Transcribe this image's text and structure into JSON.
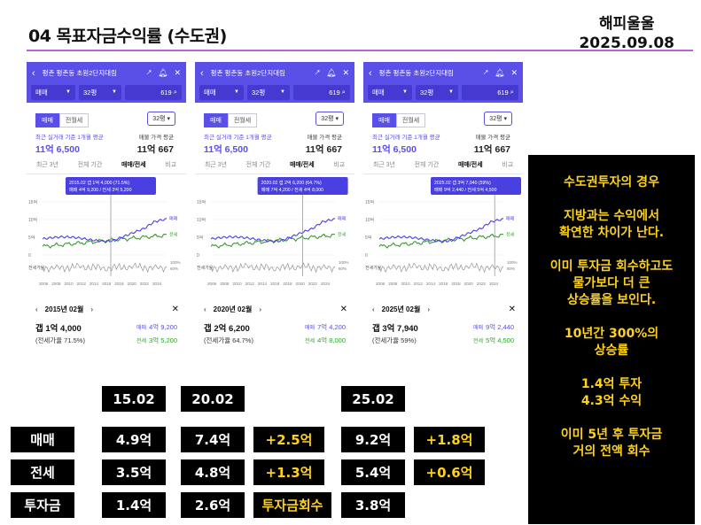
{
  "header": {
    "title": "04 목표자금수익률 (수도권)",
    "author": "해피울울",
    "date": "2025.09.08"
  },
  "phones": [
    {
      "app_title": "평촌 평촌동 초원2단지대림",
      "filter_type": "매매",
      "filter_size": "32평",
      "filter_count": "619",
      "seg_on": "매매",
      "seg_off": "전월세",
      "pyeong": "32평",
      "left_caption": "최근 실거래 기준 1개월 평균",
      "left_value": "11억 6,500",
      "right_caption": "매물 가격 평균",
      "right_value": "11억 667",
      "tabs": [
        "최근 3년",
        "전체 기간",
        "매매/전세",
        "비교"
      ],
      "tooltip_line1": "2015.02  갭 1억 4,000 (71.5%)",
      "tooltip_line2": "매매 4억 9,200 / 전세 3억 5,200",
      "y_ticks": [
        "15억",
        "10억",
        "5억",
        "0"
      ],
      "ratio_label": "전세가율",
      "ratio_ticks": [
        "100%",
        "60%"
      ],
      "x_ticks": [
        "2006",
        "2008",
        "2010",
        "2012",
        "2014",
        "2016",
        "2018",
        "2020",
        "2022",
        "2024"
      ],
      "legend_sale": "매매",
      "legend_lease": "전세",
      "nav_label": "2015년 02월",
      "gap": "갭 1억 4,000",
      "ratio": "(전세가율 71.5%)",
      "sale_key": "매매",
      "sale_value": "4억 9,200",
      "lease_key": "전세",
      "lease_value": "3억 5,200",
      "marker": 0.55
    },
    {
      "app_title": "평촌 평촌동 초원2단지대림",
      "filter_type": "매매",
      "filter_size": "32평",
      "filter_count": "619",
      "seg_on": "매매",
      "seg_off": "전월세",
      "pyeong": "32평",
      "left_caption": "최근 실거래 기준 1개월 평균",
      "left_value": "11억 6,500",
      "right_caption": "매물 가격 평균",
      "right_value": "11억 667",
      "tabs": [
        "최근 3년",
        "전체 기간",
        "매매/전세",
        "비교"
      ],
      "tooltip_line1": "2020.02  갭 2억 6,200 (64.7%)",
      "tooltip_line2": "매매 7억 4,200 / 전세 4억 8,000",
      "y_ticks": [
        "15억",
        "10억",
        "5억",
        "0"
      ],
      "ratio_label": "전세가율",
      "ratio_ticks": [
        "100%",
        "60%"
      ],
      "x_ticks": [
        "2006",
        "2008",
        "2010",
        "2012",
        "2014",
        "2016",
        "2018",
        "2020",
        "2022",
        "2024"
      ],
      "legend_sale": "매매",
      "legend_lease": "전세",
      "nav_label": "2020년 02월",
      "gap": "갭 2억 6,200",
      "ratio": "(전세가율 64.7%)",
      "sale_key": "매매",
      "sale_value": "7억 4,200",
      "lease_key": "전세",
      "lease_value": "4억 8,000",
      "marker": 0.74
    },
    {
      "app_title": "평촌 평촌동 초원2단지대림",
      "filter_type": "매매",
      "filter_size": "32평",
      "filter_count": "619",
      "seg_on": "매매",
      "seg_off": "전월세",
      "pyeong": "32평",
      "left_caption": "최근 실거래 기준 1개월 평균",
      "left_value": "11억 6,500",
      "right_caption": "매물 가격 평균",
      "right_value": "11억 667",
      "tabs": [
        "최근 3년",
        "전체 기간",
        "매매/전세",
        "비교"
      ],
      "tooltip_line1": "2025.02  갭 3억 7,940 (59%)",
      "tooltip_line2": "매매 9억 2,440 / 전세 5억 4,500",
      "y_ticks": [
        "15억",
        "10억",
        "5억",
        "0"
      ],
      "ratio_label": "전세가율",
      "ratio_ticks": [
        "100%",
        "60%"
      ],
      "x_ticks": [
        "2006",
        "2008",
        "2010",
        "2012",
        "2014",
        "2016",
        "2018",
        "2020",
        "2022",
        "2024"
      ],
      "legend_sale": "매매",
      "legend_lease": "전세",
      "nav_label": "2025년 02월",
      "gap": "갭 3억 7,940",
      "ratio": "(전세가율 59%)",
      "sale_key": "매매",
      "sale_value": "9억 2,440",
      "lease_key": "전세",
      "lease_value": "5억 4,500",
      "marker": 0.93
    }
  ],
  "callout": [
    "수도권투자의 경우",
    "지방과는 수익에서\n확연한 차이가 난다.",
    "이미 투자금 회수하고도\n물가보다 더 큰\n상승률을 보인다.",
    "10년간 300%의\n상승률",
    "1.4억 투자\n4.3억 수익",
    "이미 5년 후 투자금\n거의 전액 회수"
  ],
  "summary": {
    "periods": [
      "15.02",
      "20.02",
      "25.02"
    ],
    "row_labels": [
      "매매",
      "전세",
      "투자금"
    ],
    "sale": [
      "4.9억",
      "7.4억",
      "+2.5억",
      "9.2억",
      "+1.8억"
    ],
    "lease": [
      "3.5억",
      "4.8억",
      "+1.3억",
      "5.4억",
      "+0.6억"
    ],
    "investment": [
      "1.4억",
      "2.6억",
      "투자금회수",
      "3.8억"
    ]
  }
}
